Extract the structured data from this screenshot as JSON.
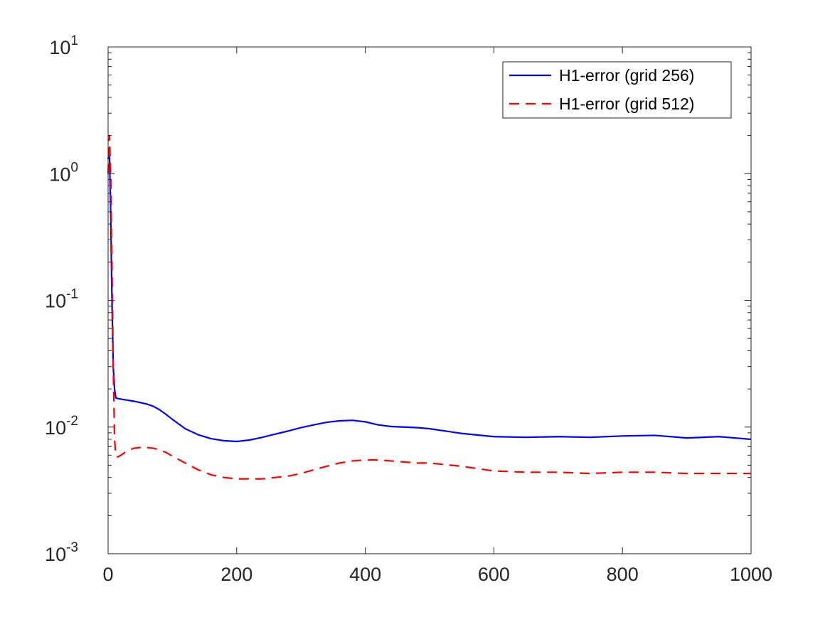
{
  "colors": {
    "series_256": "#0000ff",
    "series_512": "#ff0000",
    "axis": "#262626",
    "background": "#ffffff"
  },
  "chart_data": {
    "type": "line",
    "title": "",
    "xlabel": "",
    "ylabel": "",
    "xlim": [
      0,
      1000
    ],
    "ylim": [
      0.001,
      10
    ],
    "yscale": "log",
    "grid": false,
    "legend_location": "top-right",
    "x_ticks": [
      0,
      200,
      400,
      600,
      800,
      1000
    ],
    "x_tick_labels": [
      "0",
      "200",
      "400",
      "600",
      "800",
      "1000"
    ],
    "y_ticks": [
      {
        "value": 10,
        "base": "10",
        "exp": "1"
      },
      {
        "value": 1,
        "base": "10",
        "exp": "0"
      },
      {
        "value": 0.1,
        "base": "10",
        "exp": "-1"
      },
      {
        "value": 0.01,
        "base": "10",
        "exp": "-2"
      },
      {
        "value": 0.001,
        "base": "10",
        "exp": "-3"
      }
    ],
    "series": [
      {
        "name": "H1-error (grid 256)",
        "style": "solid",
        "x": [
          0,
          2,
          4,
          6,
          8,
          10,
          12,
          15,
          20,
          30,
          40,
          50,
          60,
          70,
          80,
          90,
          100,
          120,
          140,
          160,
          180,
          200,
          220,
          240,
          260,
          280,
          300,
          320,
          340,
          360,
          380,
          400,
          420,
          440,
          460,
          480,
          500,
          550,
          600,
          650,
          700,
          750,
          800,
          850,
          900,
          950,
          1000
        ],
        "y": [
          1.3,
          1.5,
          0.5,
          0.1,
          0.03,
          0.02,
          0.017,
          0.0168,
          0.0166,
          0.0163,
          0.016,
          0.0156,
          0.0152,
          0.0146,
          0.0137,
          0.0126,
          0.0115,
          0.0097,
          0.0087,
          0.0081,
          0.0078,
          0.0077,
          0.0079,
          0.0083,
          0.0088,
          0.0093,
          0.0099,
          0.0104,
          0.0109,
          0.0112,
          0.0113,
          0.011,
          0.0104,
          0.0101,
          0.01,
          0.0099,
          0.0097,
          0.0089,
          0.0084,
          0.0083,
          0.0084,
          0.0083,
          0.0085,
          0.0086,
          0.0082,
          0.0084,
          0.008
        ]
      },
      {
        "name": "H1-error (grid 512)",
        "style": "dashed",
        "x": [
          0,
          2,
          4,
          6,
          8,
          10,
          12,
          15,
          20,
          30,
          40,
          50,
          60,
          70,
          80,
          90,
          100,
          120,
          140,
          160,
          180,
          200,
          220,
          240,
          260,
          280,
          300,
          320,
          340,
          360,
          380,
          400,
          420,
          440,
          460,
          480,
          500,
          550,
          600,
          650,
          700,
          750,
          800,
          850,
          900,
          950,
          1000
        ],
        "y": [
          1.0,
          2.0,
          1.0,
          0.2,
          0.03,
          0.008,
          0.006,
          0.0058,
          0.006,
          0.0065,
          0.0068,
          0.0069,
          0.0069,
          0.0068,
          0.0066,
          0.0063,
          0.0059,
          0.0052,
          0.0046,
          0.0042,
          0.004,
          0.0039,
          0.0039,
          0.0039,
          0.004,
          0.0041,
          0.0043,
          0.0046,
          0.0049,
          0.0052,
          0.0054,
          0.0055,
          0.0055,
          0.0054,
          0.0053,
          0.0052,
          0.0052,
          0.0049,
          0.0045,
          0.0044,
          0.0044,
          0.0043,
          0.0044,
          0.0044,
          0.0043,
          0.0043,
          0.0043
        ]
      }
    ]
  }
}
